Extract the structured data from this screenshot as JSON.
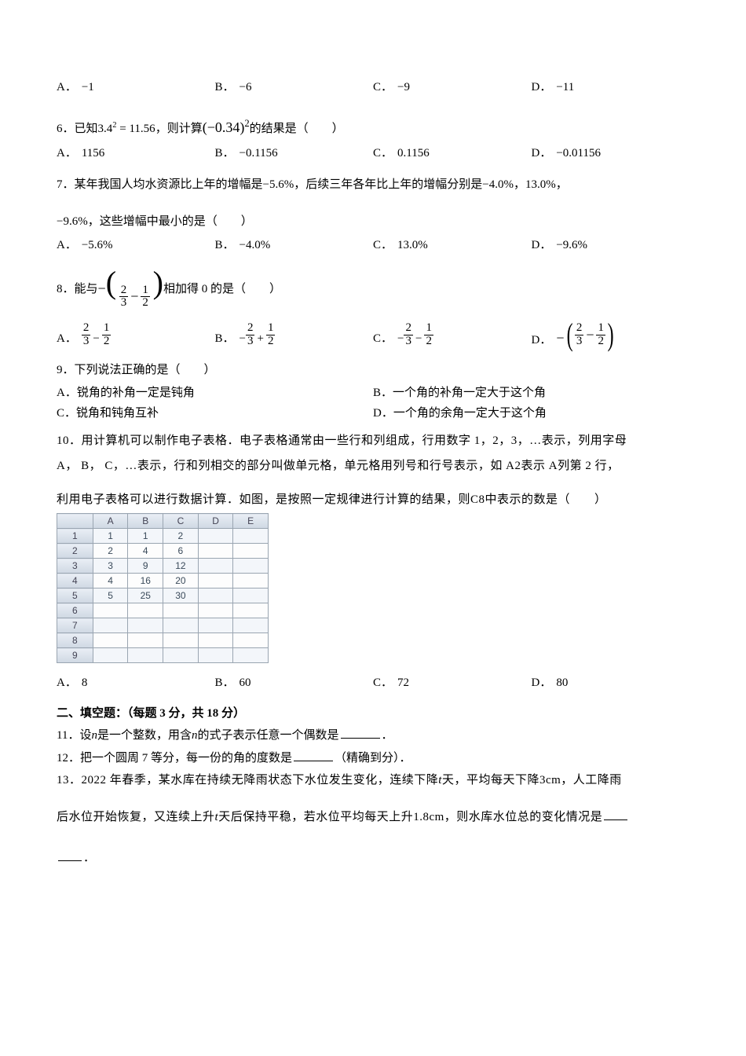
{
  "q5": {
    "options": {
      "a_label": "A．",
      "a_val": "−1",
      "b_label": "B．",
      "b_val": "−6",
      "c_label": "C．",
      "c_val": "−9",
      "d_label": "D．",
      "d_val": "−11"
    }
  },
  "q6": {
    "num": "6．",
    "pre": "已知",
    "given_lhs": "3.4",
    "given_exp": "2",
    "given_eq": " = 11.56",
    "mid": "，则计算",
    "expr_base": "(−0.34)",
    "expr_exp": "2",
    "post": " 的结果是（　　）",
    "options": {
      "a_label": "A．",
      "a_val": "1156",
      "b_label": "B．",
      "b_val": "−0.1156",
      "c_label": "C．",
      "c_val": "0.1156",
      "d_label": "D．",
      "d_val": "−0.01156"
    }
  },
  "q7": {
    "num": "7．",
    "line1a": "某年我国人均水资源比上年的增幅是",
    "v1": "−5.6%",
    "line1b": "，后续三年各年比上年的增幅分别是",
    "v2": "−4.0%",
    "line1c": "，13.0%，",
    "v3": "−9.6%",
    "line2": "，这些增幅中最小的是（　　）",
    "options": {
      "a_label": "A．",
      "a_val": "−5.6%",
      "b_label": "B．",
      "b_val": "−4.0%",
      "c_label": "C．",
      "c_val": "13.0%",
      "d_label": "D．",
      "d_val": "−9.6%"
    }
  },
  "q8": {
    "num": "8．",
    "pre": "能与 ",
    "minus": "−",
    "a_n": "2",
    "a_d": "3",
    "op": "−",
    "b_n": "1",
    "b_d": "2",
    "post": " 相加得 0 的是（　　）",
    "opts": {
      "a_label": "A．",
      "b_label": "B．",
      "c_label": "C．",
      "d_label": "D．",
      "a": {
        "s1": "",
        "n1": "2",
        "d1": "3",
        "op": "−",
        "s2": "",
        "n2": "1",
        "d2": "2"
      },
      "b": {
        "s1": "−",
        "n1": "2",
        "d1": "3",
        "op": "+",
        "s2": "",
        "n2": "1",
        "d2": "2"
      },
      "c": {
        "s1": "−",
        "n1": "2",
        "d1": "3",
        "op": "−",
        "s2": "",
        "n2": "1",
        "d2": "2"
      },
      "d_lead": "−",
      "d": {
        "n1": "2",
        "d1": "3",
        "op": "−",
        "n2": "1",
        "d2": "2"
      }
    }
  },
  "q9": {
    "num": "9．",
    "text": "下列说法正确的是（　　）",
    "a_label": "A．",
    "a_val": "锐角的补角一定是钝角",
    "b_label": "B．",
    "b_val": "一个角的补角一定大于这个角",
    "c_label": "C．",
    "c_val": "锐角和钝角互补",
    "d_label": "D．",
    "d_val": "一个角的余角一定大于这个角"
  },
  "q10": {
    "num": "10．",
    "l1": "用计算机可以制作电子表格．电子表格通常由一些行和列组成，行用数字 1，2，3，…表示，列用字母",
    "l2a": "A",
    "l2b": "，",
    "l2c": "B",
    "l2d": "，",
    "l2e": "C",
    "l2f": "，…表示，行和列相交的部分叫做单元格，单元格用列号和行号表示，如",
    "l2g": "A2",
    "l2h": "表示",
    "l2i": "A",
    "l2j": "列第 2 行，",
    "l3a": "利用电子表格可以进行数据计算．如图，是按照一定规律进行计算的结果，则",
    "l3b": "C8",
    "l3c": "中表示的数是（　　）",
    "table": {
      "cols": [
        "",
        "A",
        "B",
        "C",
        "D",
        "E"
      ],
      "rows": [
        [
          "1",
          "1",
          "1",
          "2",
          "",
          ""
        ],
        [
          "2",
          "2",
          "4",
          "6",
          "",
          ""
        ],
        [
          "3",
          "3",
          "9",
          "12",
          "",
          ""
        ],
        [
          "4",
          "4",
          "16",
          "20",
          "",
          ""
        ],
        [
          "5",
          "5",
          "25",
          "30",
          "",
          ""
        ],
        [
          "6",
          "",
          "",
          "",
          "",
          ""
        ],
        [
          "7",
          "",
          "",
          "",
          "",
          ""
        ],
        [
          "8",
          "",
          "",
          "",
          "",
          ""
        ],
        [
          "9",
          "",
          "",
          "",
          "",
          ""
        ]
      ]
    },
    "options": {
      "a_label": "A．",
      "a_val": "8",
      "b_label": "B．",
      "b_val": "60",
      "c_label": "C．",
      "c_val": "72",
      "d_label": "D．",
      "d_val": "80"
    }
  },
  "section2": "二、填空题：（每题 3 分，共 18 分）",
  "q11": {
    "num": "11．",
    "a": "设",
    "n": "n",
    "b": "是一个整数，用含",
    "n2": "n",
    "c": "的式子表示任意一个偶数是",
    "end": "．"
  },
  "q12": {
    "num": "12．",
    "text": "把一个圆周 7 等分，每一份的角的度数是",
    "end": "（精确到分）．"
  },
  "q13": {
    "num": "13．",
    "l1a": "2022 年春季，某水库在持续无降雨状态下水位发生变化，连续下降",
    "t1": "t",
    "l1b": "天，平均每天下降",
    "v1": "3cm",
    "l1c": "，人工降雨",
    "l2a": "后水位开始恢复，又连续上升",
    "t2": "t",
    "l2b": "天后保持平稳，若水位平均每天上升",
    "v2": "1.8cm",
    "l2c": "，则水库水位总的变化情况是",
    "end": "．"
  }
}
